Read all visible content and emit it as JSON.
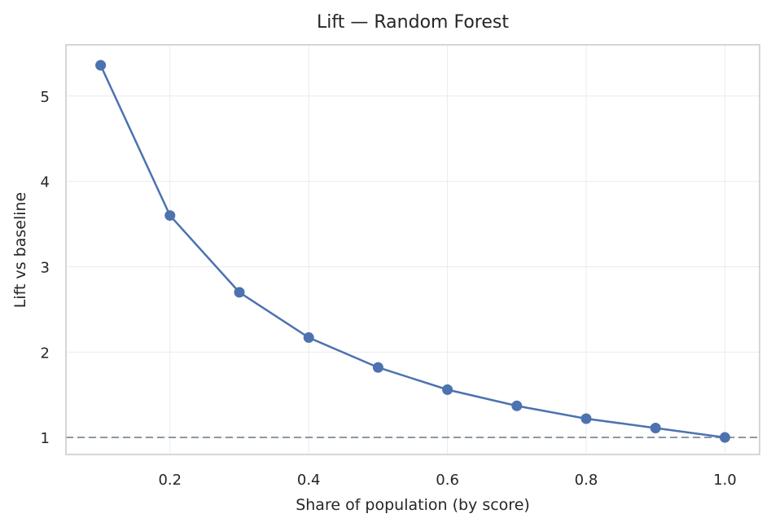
{
  "chart_data": {
    "type": "line",
    "title": "Lift — Random Forest",
    "xlabel": "Share of population (by score)",
    "ylabel": "Lift vs baseline",
    "xlim": [
      0.05,
      1.05
    ],
    "ylim": [
      0.8,
      5.6
    ],
    "xticks": [
      0.2,
      0.4,
      0.6,
      0.8,
      1.0
    ],
    "xtick_labels": [
      "0.2",
      "0.4",
      "0.6",
      "0.8",
      "1.0"
    ],
    "yticks": [
      1,
      2,
      3,
      4,
      5
    ],
    "ytick_labels": [
      "1",
      "2",
      "3",
      "4",
      "5"
    ],
    "grid": true,
    "baseline": 1.0,
    "series": [
      {
        "color": "#4c72b0",
        "x": [
          0.1,
          0.2,
          0.3,
          0.4,
          0.5,
          0.6,
          0.7,
          0.8,
          0.9,
          1.0
        ],
        "y": [
          5.36,
          3.6,
          2.7,
          2.17,
          1.82,
          1.56,
          1.37,
          1.22,
          1.11,
          1.0
        ]
      }
    ]
  }
}
